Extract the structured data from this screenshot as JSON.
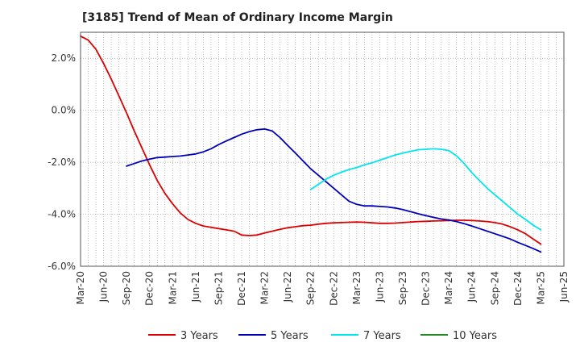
{
  "chart_data": {
    "type": "line",
    "title": "[3185]  Trend of Mean of Ordinary Income Margin",
    "xlabel": "",
    "ylabel": "",
    "x_ticks": [
      "Mar-20",
      "Jun-20",
      "Sep-20",
      "Dec-20",
      "Mar-21",
      "Jun-21",
      "Sep-21",
      "Dec-21",
      "Mar-22",
      "Jun-22",
      "Sep-22",
      "Dec-22",
      "Mar-23",
      "Jun-23",
      "Sep-23",
      "Dec-23",
      "Mar-24",
      "Jun-24",
      "Sep-24",
      "Dec-24",
      "Mar-25",
      "Jun-25"
    ],
    "y_ticks": [
      "2.0%",
      "0.0%",
      "-2.0%",
      "-4.0%",
      "-6.0%"
    ],
    "y_tick_values": [
      2,
      0,
      -2,
      -4,
      -6
    ],
    "ylim": [
      -6,
      3.0
    ],
    "grid": true,
    "legend_position": "bottom",
    "series": [
      {
        "name": "3 Years",
        "color": "#dd0000",
        "x": [
          "Mar-20",
          "Apr-20",
          "May-20",
          "Jun-20",
          "Jul-20",
          "Aug-20",
          "Sep-20",
          "Oct-20",
          "Nov-20",
          "Dec-20",
          "Jan-21",
          "Feb-21",
          "Mar-21",
          "Apr-21",
          "May-21",
          "Jun-21",
          "Jul-21",
          "Aug-21",
          "Sep-21",
          "Oct-21",
          "Nov-21",
          "Dec-21",
          "Jan-22",
          "Feb-22",
          "Mar-22",
          "Apr-22",
          "May-22",
          "Jun-22",
          "Jul-22",
          "Aug-22",
          "Sep-22",
          "Oct-22",
          "Nov-22",
          "Dec-22",
          "Jan-23",
          "Feb-23",
          "Mar-23",
          "Apr-23",
          "May-23",
          "Jun-23",
          "Jul-23",
          "Aug-23",
          "Sep-23",
          "Oct-23",
          "Nov-23",
          "Dec-23",
          "Jan-24",
          "Feb-24",
          "Mar-24",
          "Apr-24",
          "May-24",
          "Jun-24",
          "Jul-24",
          "Aug-24",
          "Sep-24",
          "Oct-24",
          "Nov-24",
          "Dec-24",
          "Jan-25",
          "Feb-25",
          "Mar-25"
        ],
        "values": [
          2.85,
          2.7,
          2.35,
          1.8,
          1.2,
          0.55,
          -0.1,
          -0.8,
          -1.45,
          -2.1,
          -2.7,
          -3.2,
          -3.6,
          -3.95,
          -4.2,
          -4.35,
          -4.45,
          -4.5,
          -4.55,
          -4.6,
          -4.65,
          -4.8,
          -4.82,
          -4.8,
          -4.72,
          -4.65,
          -4.58,
          -4.52,
          -4.48,
          -4.44,
          -4.42,
          -4.38,
          -4.35,
          -4.33,
          -4.32,
          -4.31,
          -4.3,
          -4.31,
          -4.33,
          -4.35,
          -4.35,
          -4.34,
          -4.32,
          -4.3,
          -4.28,
          -4.27,
          -4.26,
          -4.25,
          -4.24,
          -4.23,
          -4.23,
          -4.24,
          -4.26,
          -4.28,
          -4.32,
          -4.38,
          -4.48,
          -4.6,
          -4.75,
          -4.95,
          -5.15
        ]
      },
      {
        "name": "5 Years",
        "color": "#0000bb",
        "x": [
          "Sep-20",
          "Oct-20",
          "Nov-20",
          "Dec-20",
          "Jan-21",
          "Feb-21",
          "Mar-21",
          "Apr-21",
          "May-21",
          "Jun-21",
          "Jul-21",
          "Aug-21",
          "Sep-21",
          "Oct-21",
          "Nov-21",
          "Dec-21",
          "Jan-22",
          "Feb-22",
          "Mar-22",
          "Apr-22",
          "May-22",
          "Jun-22",
          "Jul-22",
          "Aug-22",
          "Sep-22",
          "Oct-22",
          "Nov-22",
          "Dec-22",
          "Jan-23",
          "Feb-23",
          "Mar-23",
          "Apr-23",
          "May-23",
          "Jun-23",
          "Jul-23",
          "Aug-23",
          "Sep-23",
          "Oct-23",
          "Nov-23",
          "Dec-23",
          "Jan-24",
          "Feb-24",
          "Mar-24",
          "Apr-24",
          "May-24",
          "Jun-24",
          "Jul-24",
          "Aug-24",
          "Sep-24",
          "Oct-24",
          "Nov-24",
          "Dec-24",
          "Jan-25",
          "Feb-25",
          "Mar-25"
        ],
        "values": [
          -2.15,
          -2.05,
          -1.95,
          -1.88,
          -1.82,
          -1.8,
          -1.78,
          -1.76,
          -1.72,
          -1.68,
          -1.6,
          -1.48,
          -1.32,
          -1.18,
          -1.05,
          -0.92,
          -0.82,
          -0.75,
          -0.72,
          -0.8,
          -1.05,
          -1.35,
          -1.65,
          -1.95,
          -2.25,
          -2.5,
          -2.75,
          -3.0,
          -3.25,
          -3.5,
          -3.62,
          -3.68,
          -3.68,
          -3.7,
          -3.72,
          -3.76,
          -3.82,
          -3.9,
          -3.98,
          -4.05,
          -4.12,
          -4.18,
          -4.22,
          -4.28,
          -4.36,
          -4.45,
          -4.55,
          -4.65,
          -4.75,
          -4.85,
          -4.95,
          -5.08,
          -5.2,
          -5.32,
          -5.45
        ]
      },
      {
        "name": "7 Years",
        "color": "#00e5ee",
        "x": [
          "Sep-22",
          "Oct-22",
          "Nov-22",
          "Dec-22",
          "Jan-23",
          "Feb-23",
          "Mar-23",
          "Apr-23",
          "May-23",
          "Jun-23",
          "Jul-23",
          "Aug-23",
          "Sep-23",
          "Oct-23",
          "Nov-23",
          "Dec-23",
          "Jan-24",
          "Feb-24",
          "Mar-24",
          "Apr-24",
          "May-24",
          "Jun-24",
          "Jul-24",
          "Aug-24",
          "Sep-24",
          "Oct-24",
          "Nov-24",
          "Dec-24",
          "Jan-25",
          "Feb-25",
          "Mar-25"
        ],
        "values": [
          -3.05,
          -2.85,
          -2.65,
          -2.5,
          -2.38,
          -2.28,
          -2.2,
          -2.1,
          -2.02,
          -1.92,
          -1.82,
          -1.72,
          -1.65,
          -1.58,
          -1.52,
          -1.5,
          -1.48,
          -1.5,
          -1.55,
          -1.75,
          -2.05,
          -2.4,
          -2.7,
          -3.0,
          -3.25,
          -3.5,
          -3.75,
          -4.0,
          -4.2,
          -4.42,
          -4.6
        ]
      },
      {
        "name": "10 Years",
        "color": "#228b22",
        "x": [],
        "values": []
      }
    ]
  }
}
